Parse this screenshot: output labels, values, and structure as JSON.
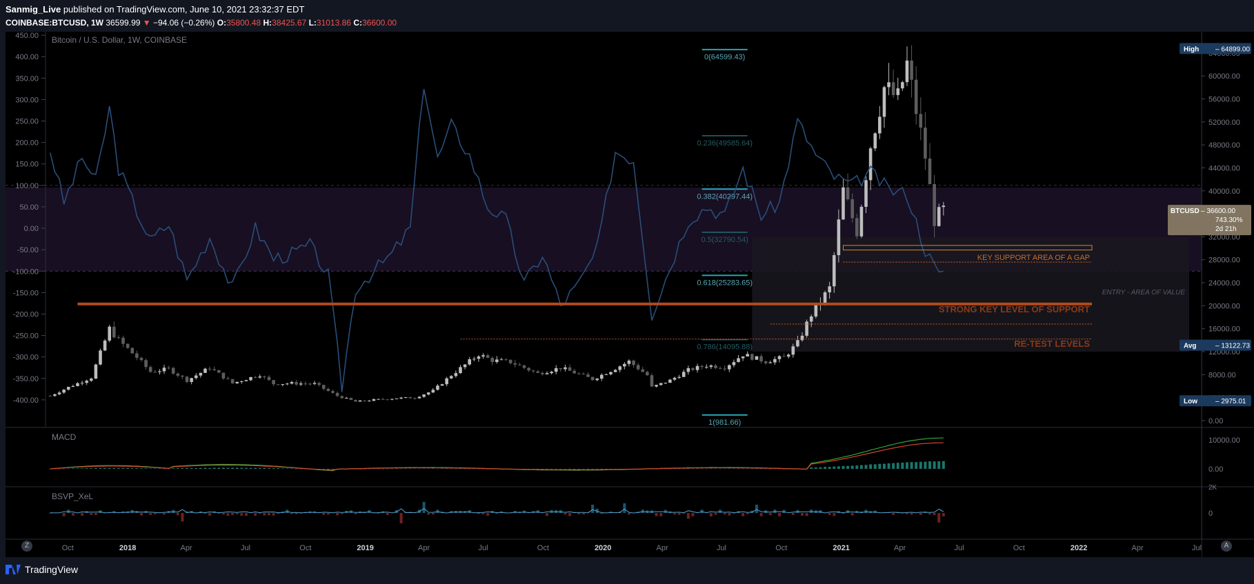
{
  "header": {
    "author": "Sanmig_Live",
    "published_text": "published on TradingView.com, June 10, 2021 23:32:37 EDT",
    "symbol": "COINBASE:BTCUSD, 1W",
    "price": "36599.99",
    "change": "−94.06 (−0.26%)",
    "open_label": "O:",
    "open": "35800.48",
    "high_label": "H:",
    "high": "38425.67",
    "low_label": "L:",
    "low": "31013.86",
    "close_label": "C:",
    "close": "36600.00"
  },
  "footer": {
    "brand": "TradingView",
    "zoom_button": "Z",
    "auto_button": "A"
  },
  "chart_data": {
    "type": "candlestick",
    "title": "Bitcoin / U.S. Dollar, 1W, COINBASE",
    "price_axis": {
      "ticks": [
        "64000.00",
        "60000.00",
        "56000.00",
        "52000.00",
        "48000.00",
        "44000.00",
        "40000.00",
        "36000.00",
        "32000.00",
        "28000.00",
        "24000.00",
        "20000.00",
        "16000.00",
        "12000.00",
        "8000.00",
        "4000.00",
        "0.00"
      ],
      "range": [
        -1200,
        66500
      ]
    },
    "oscillator_axis": {
      "ticks": [
        "450.00",
        "400.00",
        "350.00",
        "300.00",
        "250.00",
        "200.00",
        "150.00",
        "100.00",
        "50.00",
        "0.00",
        "-50.00",
        "-100.00",
        "-150.00",
        "-200.00",
        "-250.00",
        "-300.00",
        "-350.00",
        "-400.00"
      ],
      "range": [
        -405,
        455
      ]
    },
    "time_axis": [
      "Oct",
      "2018",
      "Apr",
      "Jul",
      "Oct",
      "2019",
      "Apr",
      "Jul",
      "Oct",
      "2020",
      "Apr",
      "Jul",
      "Oct",
      "2021",
      "Apr",
      "Jul",
      "Oct",
      "2022",
      "Apr",
      "Jul"
    ],
    "badges": {
      "high": {
        "label": "High",
        "value": "64899.00"
      },
      "current": {
        "label": "BTCUSD",
        "value": "36600.00",
        "pct": "743.30%",
        "countdown": "2d 21h"
      },
      "avg": {
        "label": "Avg",
        "value": "13122.73"
      },
      "low": {
        "label": "Low",
        "value": "2975.01"
      }
    },
    "fibonacci": [
      {
        "label": "0(64599.43)",
        "price": 64599.43
      },
      {
        "label": "0.236(49585.64)",
        "price": 49585.64
      },
      {
        "label": "0.382(40297.44)",
        "price": 40297.44
      },
      {
        "label": "0.5(32790.54)",
        "price": 32790.54
      },
      {
        "label": "0.618(25283.65)",
        "price": 25283.65
      },
      {
        "label": "0.786(14095.88)",
        "price": 14095.88
      },
      {
        "label": "1(981.66)",
        "price": 981.66
      }
    ],
    "annotations": [
      {
        "text": "KEY SUPPORT AREA OF A GAP",
        "price": 28600
      },
      {
        "text": "ENTRY - AREA OF VALUE",
        "price": 22500
      },
      {
        "text": "STRONG KEY LEVEL OF SUPPORT",
        "price": 20300
      },
      {
        "text": "RE-TEST LEVELS",
        "price": 14200
      }
    ],
    "oscillator_series": [
      {
        "date": "2017-09-04",
        "value": 182
      },
      {
        "date": "2017-09-25",
        "value": 60
      },
      {
        "date": "2017-10-23",
        "value": 165
      },
      {
        "date": "2017-11-13",
        "value": 110
      },
      {
        "date": "2017-12-04",
        "value": 280
      },
      {
        "date": "2017-12-18",
        "value": 140
      },
      {
        "date": "2018-01-15",
        "value": 40
      },
      {
        "date": "2018-02-05",
        "value": -30
      },
      {
        "date": "2018-03-05",
        "value": 10
      },
      {
        "date": "2018-04-02",
        "value": -120
      },
      {
        "date": "2018-05-07",
        "value": -20
      },
      {
        "date": "2018-06-11",
        "value": -140
      },
      {
        "date": "2018-07-16",
        "value": 0
      },
      {
        "date": "2018-08-13",
        "value": -70
      },
      {
        "date": "2018-09-10",
        "value": -60
      },
      {
        "date": "2018-10-08",
        "value": -40
      },
      {
        "date": "2018-11-05",
        "value": -110
      },
      {
        "date": "2018-11-26",
        "value": -370
      },
      {
        "date": "2018-12-17",
        "value": -140
      },
      {
        "date": "2019-01-14",
        "value": -100
      },
      {
        "date": "2019-02-11",
        "value": -60
      },
      {
        "date": "2019-03-11",
        "value": 0
      },
      {
        "date": "2019-04-01",
        "value": 340
      },
      {
        "date": "2019-04-22",
        "value": 160
      },
      {
        "date": "2019-05-13",
        "value": 240
      },
      {
        "date": "2019-06-10",
        "value": 170
      },
      {
        "date": "2019-07-08",
        "value": 50
      },
      {
        "date": "2019-08-05",
        "value": 20
      },
      {
        "date": "2019-09-02",
        "value": -130
      },
      {
        "date": "2019-09-30",
        "value": -60
      },
      {
        "date": "2019-10-28",
        "value": -180
      },
      {
        "date": "2019-11-25",
        "value": -130
      },
      {
        "date": "2019-12-23",
        "value": -50
      },
      {
        "date": "2020-01-20",
        "value": 180
      },
      {
        "date": "2020-02-17",
        "value": 160
      },
      {
        "date": "2020-03-16",
        "value": -200
      },
      {
        "date": "2020-04-13",
        "value": -90
      },
      {
        "date": "2020-05-11",
        "value": 20
      },
      {
        "date": "2020-06-08",
        "value": 50
      },
      {
        "date": "2020-07-06",
        "value": 30
      },
      {
        "date": "2020-08-03",
        "value": 140
      },
      {
        "date": "2020-08-31",
        "value": 30
      },
      {
        "date": "2020-09-28",
        "value": 60
      },
      {
        "date": "2020-10-26",
        "value": 250
      },
      {
        "date": "2020-11-23",
        "value": 170
      },
      {
        "date": "2020-12-21",
        "value": 120
      },
      {
        "date": "2021-01-18",
        "value": 100
      },
      {
        "date": "2021-02-15",
        "value": 130
      },
      {
        "date": "2021-03-15",
        "value": 90
      },
      {
        "date": "2021-04-12",
        "value": 80
      },
      {
        "date": "2021-05-10",
        "value": -50
      },
      {
        "date": "2021-05-31",
        "value": -110
      },
      {
        "date": "2021-06-07",
        "value": -100
      }
    ],
    "price_series": [
      {
        "date": "2017-09-04",
        "value": 4300
      },
      {
        "date": "2017-10-02",
        "value": 5800
      },
      {
        "date": "2017-11-06",
        "value": 7500
      },
      {
        "date": "2017-12-04",
        "value": 16000
      },
      {
        "date": "2017-12-18",
        "value": 14000
      },
      {
        "date": "2018-01-15",
        "value": 11000
      },
      {
        "date": "2018-02-05",
        "value": 8500
      },
      {
        "date": "2018-03-05",
        "value": 9000
      },
      {
        "date": "2018-04-02",
        "value": 7000
      },
      {
        "date": "2018-05-07",
        "value": 9200
      },
      {
        "date": "2018-06-11",
        "value": 6500
      },
      {
        "date": "2018-07-23",
        "value": 8000
      },
      {
        "date": "2018-08-13",
        "value": 6400
      },
      {
        "date": "2018-09-10",
        "value": 6500
      },
      {
        "date": "2018-10-15",
        "value": 6400
      },
      {
        "date": "2018-11-19",
        "value": 4300
      },
      {
        "date": "2018-12-17",
        "value": 3300
      },
      {
        "date": "2019-01-14",
        "value": 3600
      },
      {
        "date": "2019-02-18",
        "value": 3900
      },
      {
        "date": "2019-03-18",
        "value": 4000
      },
      {
        "date": "2019-04-15",
        "value": 5200
      },
      {
        "date": "2019-05-13",
        "value": 7900
      },
      {
        "date": "2019-06-24",
        "value": 11500
      },
      {
        "date": "2019-07-15",
        "value": 10500
      },
      {
        "date": "2019-08-12",
        "value": 10200
      },
      {
        "date": "2019-09-23",
        "value": 8200
      },
      {
        "date": "2019-10-28",
        "value": 9200
      },
      {
        "date": "2019-12-16",
        "value": 7200
      },
      {
        "date": "2020-01-13",
        "value": 8700
      },
      {
        "date": "2020-02-10",
        "value": 10300
      },
      {
        "date": "2020-03-09",
        "value": 7900
      },
      {
        "date": "2020-03-16",
        "value": 5800
      },
      {
        "date": "2020-04-13",
        "value": 7000
      },
      {
        "date": "2020-05-11",
        "value": 8800
      },
      {
        "date": "2020-06-08",
        "value": 9600
      },
      {
        "date": "2020-07-06",
        "value": 9300
      },
      {
        "date": "2020-08-03",
        "value": 11500
      },
      {
        "date": "2020-09-07",
        "value": 10300
      },
      {
        "date": "2020-10-05",
        "value": 11000
      },
      {
        "date": "2020-10-26",
        "value": 13500
      },
      {
        "date": "2020-11-16",
        "value": 18500
      },
      {
        "date": "2020-12-14",
        "value": 23000
      },
      {
        "date": "2021-01-04",
        "value": 40000
      },
      {
        "date": "2021-01-25",
        "value": 33000
      },
      {
        "date": "2021-02-15",
        "value": 48000
      },
      {
        "date": "2021-03-08",
        "value": 58000
      },
      {
        "date": "2021-03-29",
        "value": 56000
      },
      {
        "date": "2021-04-12",
        "value": 62000
      },
      {
        "date": "2021-05-10",
        "value": 46000
      },
      {
        "date": "2021-05-24",
        "value": 35000
      },
      {
        "date": "2021-06-07",
        "value": 36600
      }
    ]
  }
}
